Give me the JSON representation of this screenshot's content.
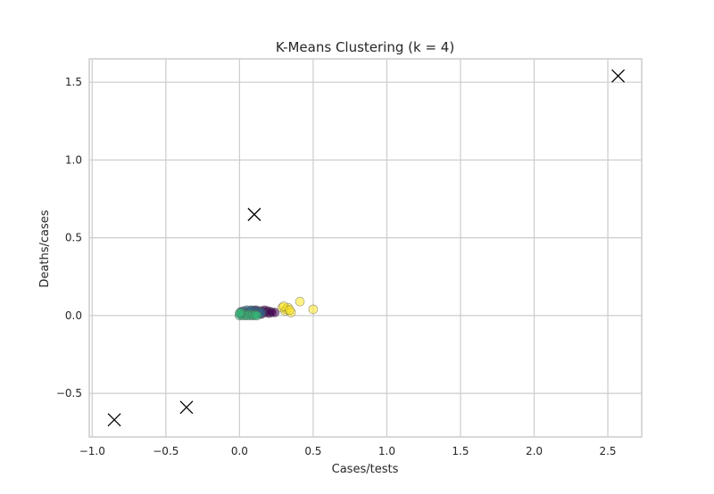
{
  "chart_data": {
    "type": "scatter",
    "title": "K-Means Clustering (k = 4)",
    "xlabel": "Cases/tests",
    "ylabel": "Deaths/cases",
    "xlim": [
      -1.02,
      2.73
    ],
    "ylim": [
      -0.78,
      1.65
    ],
    "grid": true,
    "x_ticks": [
      {
        "value": -1.0,
        "label": "−1.0"
      },
      {
        "value": -0.5,
        "label": "−0.5"
      },
      {
        "value": 0.0,
        "label": "0.0"
      },
      {
        "value": 0.5,
        "label": "0.5"
      },
      {
        "value": 1.0,
        "label": "1.0"
      },
      {
        "value": 1.5,
        "label": "1.5"
      },
      {
        "value": 2.0,
        "label": "2.0"
      },
      {
        "value": 2.5,
        "label": "2.5"
      }
    ],
    "y_ticks": [
      {
        "value": -0.5,
        "label": "−0.5"
      },
      {
        "value": 0.0,
        "label": "0.0"
      },
      {
        "value": 0.5,
        "label": "0.5"
      },
      {
        "value": 1.0,
        "label": "1.0"
      },
      {
        "value": 1.5,
        "label": "1.5"
      }
    ],
    "colors": {
      "cluster_purple": "#440154",
      "cluster_blue": "#31688e",
      "cluster_teal": "#35b779",
      "cluster_yellow": "#fde725",
      "centroid": "#000000",
      "grid": "#cccccc",
      "spine": "#cccccc"
    },
    "series": [
      {
        "color": "#440154",
        "points": [
          [
            0.1,
            0.03
          ],
          [
            0.12,
            0.02
          ],
          [
            0.14,
            0.03
          ],
          [
            0.15,
            0.01
          ],
          [
            0.16,
            0.025
          ],
          [
            0.17,
            0.035
          ],
          [
            0.18,
            0.02
          ],
          [
            0.19,
            0.03
          ],
          [
            0.2,
            0.015
          ],
          [
            0.21,
            0.025
          ],
          [
            0.22,
            0.02
          ],
          [
            0.13,
            0.015
          ],
          [
            0.11,
            0.035
          ],
          [
            0.24,
            0.02
          ],
          [
            0.09,
            0.03
          ]
        ]
      },
      {
        "color": "#31688e",
        "points": [
          [
            0.02,
            0.01
          ],
          [
            0.03,
            0.03
          ],
          [
            0.04,
            0.02
          ],
          [
            0.05,
            0.035
          ],
          [
            0.06,
            0.015
          ],
          [
            0.07,
            0.03
          ],
          [
            0.08,
            0.02
          ],
          [
            0.09,
            0.01
          ],
          [
            0.1,
            0.025
          ],
          [
            0.11,
            0.015
          ],
          [
            0.12,
            0.03
          ],
          [
            0.13,
            0.02
          ],
          [
            0.14,
            0.01
          ],
          [
            0.01,
            0.025
          ],
          [
            0.08,
            0.035
          ],
          [
            0.15,
            0.02
          ]
        ]
      },
      {
        "color": "#35b779",
        "points": [
          [
            0.0,
            0.0
          ],
          [
            0.01,
            0.01
          ],
          [
            0.02,
            0.0
          ],
          [
            0.03,
            0.01
          ],
          [
            0.04,
            0.0
          ],
          [
            0.05,
            0.005
          ],
          [
            0.06,
            0.0
          ],
          [
            0.07,
            0.01
          ],
          [
            0.08,
            0.0
          ],
          [
            0.09,
            0.005
          ],
          [
            0.1,
            0.0
          ],
          [
            0.11,
            0.005
          ],
          [
            0.12,
            0.0
          ],
          [
            0.01,
            0.02
          ],
          [
            0.0,
            0.015
          ]
        ]
      },
      {
        "color": "#fde725",
        "points": [
          [
            0.29,
            0.05
          ],
          [
            0.31,
            0.03
          ],
          [
            0.32,
            0.04
          ],
          [
            0.33,
            0.05
          ],
          [
            0.35,
            0.02
          ],
          [
            0.41,
            0.09
          ],
          [
            0.5,
            0.04
          ],
          [
            0.3,
            0.06
          ],
          [
            0.34,
            0.035
          ]
        ]
      }
    ],
    "centroids": [
      [
        -0.85,
        -0.67
      ],
      [
        -0.36,
        -0.59
      ],
      [
        0.1,
        0.65
      ],
      [
        2.57,
        1.54
      ]
    ]
  }
}
